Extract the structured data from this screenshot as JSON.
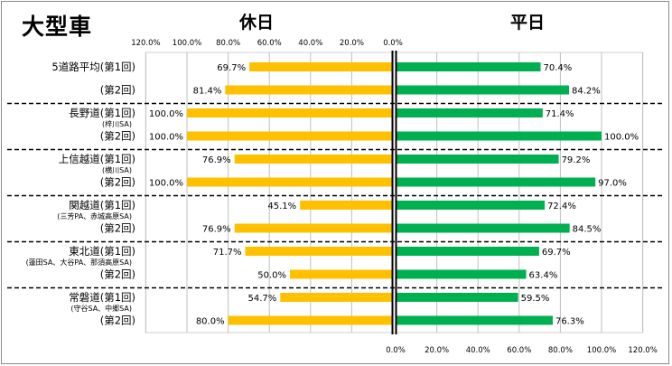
{
  "title": "大型車",
  "left_panel_title": "休日",
  "right_panel_title": "平日",
  "colors": {
    "holiday": "#FFC000",
    "weekday": "#00B050",
    "axis": "#000000",
    "grid": "#BFBFBF",
    "divider": "#000000"
  },
  "chart_data": {
    "type": "bar",
    "orientation": "horizontal-butterfly",
    "x_ticks": [
      "0.0%",
      "20.0%",
      "40.0%",
      "60.0%",
      "80.0%",
      "100.0%",
      "120.0%"
    ],
    "xlim": [
      0,
      120
    ],
    "grid": true,
    "groups": [
      {
        "rows": [
          {
            "label": "5道路平均(第1回)",
            "sublabel": "",
            "holiday": 69.7,
            "holiday_label": "69.7%",
            "weekday": 70.4,
            "weekday_label": "70.4%"
          },
          {
            "label": "(第2回)",
            "sublabel": "",
            "holiday": 81.4,
            "holiday_label": "81.4%",
            "weekday": 84.2,
            "weekday_label": "84.2%"
          }
        ]
      },
      {
        "rows": [
          {
            "label": "長野道(第1回)",
            "sublabel": "(梓川SA)",
            "holiday": 100.0,
            "holiday_label": "100.0%",
            "weekday": 71.4,
            "weekday_label": "71.4%"
          },
          {
            "label": "(第2回)",
            "sublabel": "",
            "holiday": 100.0,
            "holiday_label": "100.0%",
            "weekday": 100.0,
            "weekday_label": "100.0%"
          }
        ]
      },
      {
        "rows": [
          {
            "label": "上信越道(第1回)",
            "sublabel": "(横川SA)",
            "holiday": 76.9,
            "holiday_label": "76.9%",
            "weekday": 79.2,
            "weekday_label": "79.2%"
          },
          {
            "label": "(第2回)",
            "sublabel": "",
            "holiday": 100.0,
            "holiday_label": "100.0%",
            "weekday": 97.0,
            "weekday_label": "97.0%"
          }
        ]
      },
      {
        "rows": [
          {
            "label": "関越道(第1回)",
            "sublabel": "(三芳PA、赤城高原SA)",
            "holiday": 45.1,
            "holiday_label": "45.1%",
            "weekday": 72.4,
            "weekday_label": "72.4%"
          },
          {
            "label": "(第2回)",
            "sublabel": "",
            "holiday": 76.9,
            "holiday_label": "76.9%",
            "weekday": 84.5,
            "weekday_label": "84.5%"
          }
        ]
      },
      {
        "rows": [
          {
            "label": "東北道(第1回)",
            "sublabel": "(蓮田SA、大谷PA、那須高原SA)",
            "holiday": 71.7,
            "holiday_label": "71.7%",
            "weekday": 69.7,
            "weekday_label": "69.7%"
          },
          {
            "label": "(第2回)",
            "sublabel": "",
            "holiday": 50.0,
            "holiday_label": "50.0%",
            "weekday": 63.4,
            "weekday_label": "63.4%"
          }
        ]
      },
      {
        "rows": [
          {
            "label": "常磐道(第1回)",
            "sublabel": "(守谷SA、中郷SA)",
            "holiday": 54.7,
            "holiday_label": "54.7%",
            "weekday": 59.5,
            "weekday_label": "59.5%"
          },
          {
            "label": "(第2回)",
            "sublabel": "",
            "holiday": 80.0,
            "holiday_label": "80.0%",
            "weekday": 76.3,
            "weekday_label": "76.3%"
          }
        ]
      }
    ]
  }
}
